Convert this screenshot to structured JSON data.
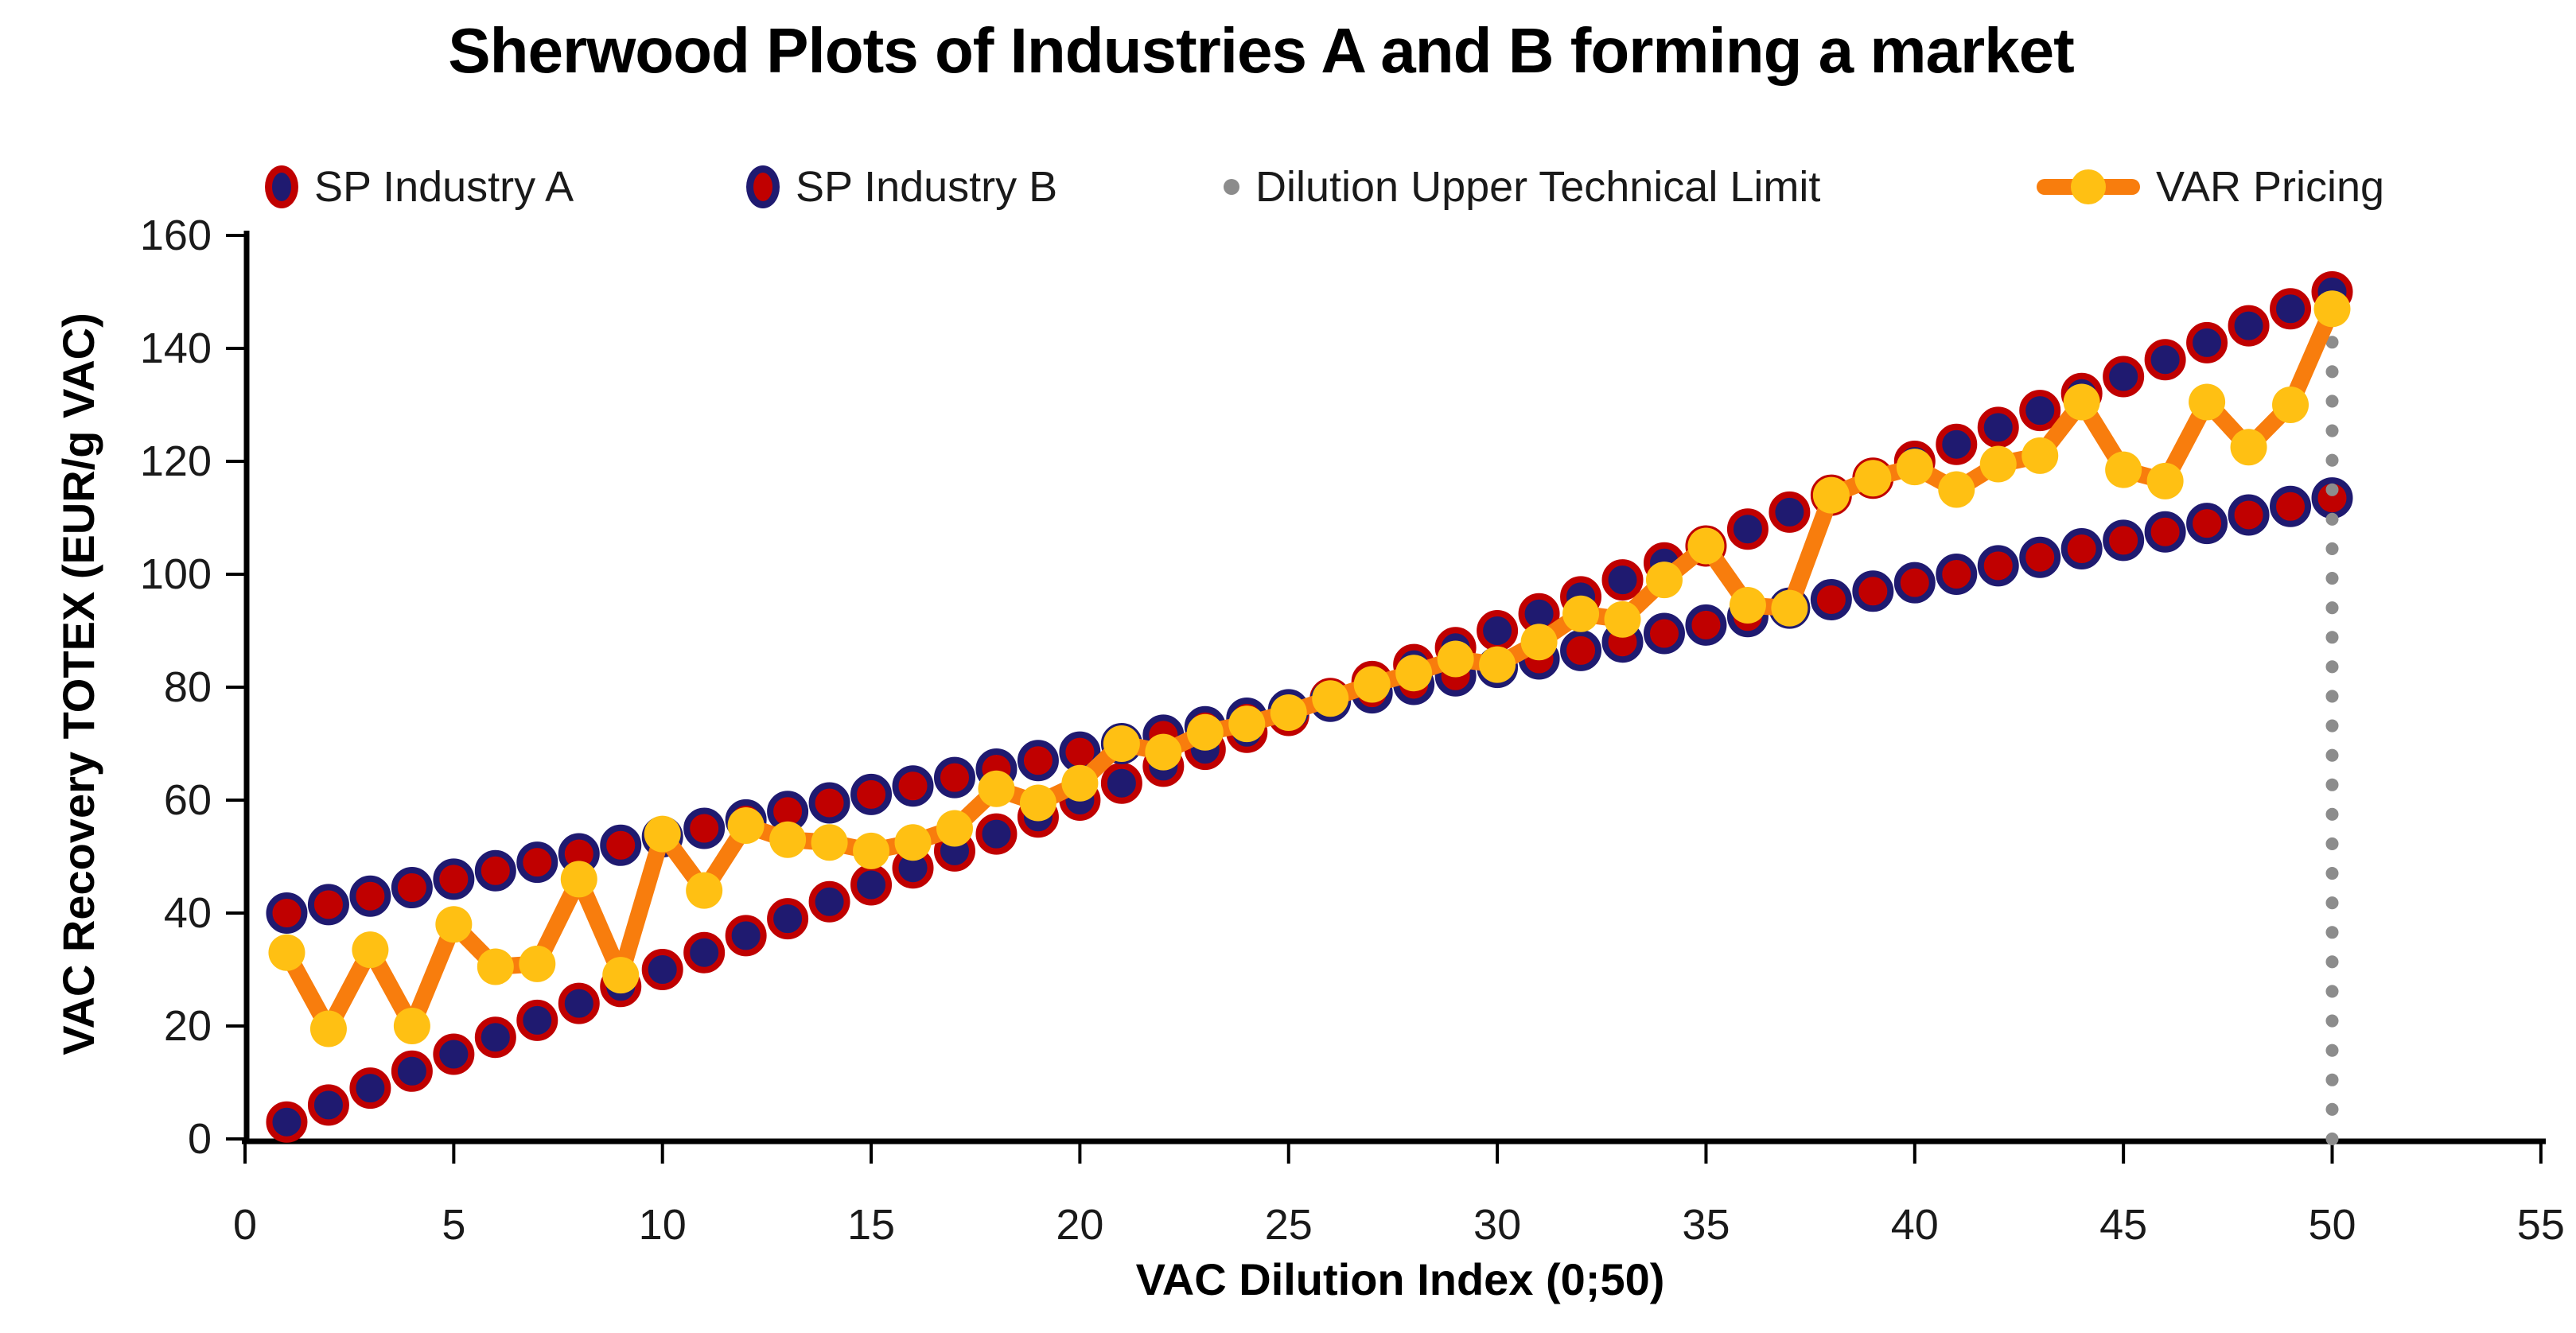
{
  "title": "Sherwood Plots of Industries A and B forming a market",
  "axes": {
    "x": {
      "label": "VAC Dilution Index (0;50)",
      "min": 0,
      "max": 55,
      "ticks": [
        0,
        5,
        10,
        15,
        20,
        25,
        30,
        35,
        40,
        45,
        50,
        55
      ]
    },
    "y": {
      "label": "VAC Recovery TOTEX (EUR/g VAC)",
      "min": 0,
      "max": 160,
      "ticks": [
        0,
        20,
        40,
        60,
        80,
        100,
        120,
        140,
        160
      ]
    }
  },
  "legend": [
    {
      "label": "SP Industry A",
      "marker": "ellipse-a"
    },
    {
      "label": "SP Industry B",
      "marker": "ellipse-b"
    },
    {
      "label": "Dilution Upper Technical Limit",
      "marker": "dot"
    },
    {
      "label": "VAR Pricing",
      "marker": "line"
    }
  ],
  "colors": {
    "industry_a_fill": "#1F1A70",
    "industry_a_ring": "#C00000",
    "industry_b_fill": "#C00000",
    "industry_b_ring": "#1F1A70",
    "var_line": "#F87D0D",
    "var_marker": "#FFC013",
    "dilution": "#8C8C8C",
    "axis": "#000000",
    "text": "#1a1a1a"
  },
  "chart_data": {
    "type": "line",
    "title": "Sherwood Plots of Industries A and B forming a market",
    "xlabel": "VAC Dilution Index (0;50)",
    "ylabel": "VAC Recovery TOTEX (EUR/g VAC)",
    "xlim": [
      0,
      55
    ],
    "ylim": [
      0,
      160
    ],
    "grid": false,
    "legend_position": "top",
    "x": [
      1,
      2,
      3,
      4,
      5,
      6,
      7,
      8,
      9,
      10,
      11,
      12,
      13,
      14,
      15,
      16,
      17,
      18,
      19,
      20,
      21,
      22,
      23,
      24,
      25,
      26,
      27,
      28,
      29,
      30,
      31,
      32,
      33,
      34,
      35,
      36,
      37,
      38,
      39,
      40,
      41,
      42,
      43,
      44,
      45,
      46,
      47,
      48,
      49,
      50
    ],
    "series": [
      {
        "name": "SP Industry A",
        "style": "scatter",
        "values": [
          3,
          6,
          9,
          12,
          15,
          18,
          21,
          24,
          27,
          30,
          33,
          36,
          39,
          42,
          45,
          48,
          51,
          54,
          57,
          60,
          63,
          66,
          69,
          72,
          75,
          78,
          81,
          84,
          87,
          90,
          93,
          96,
          99,
          102,
          105,
          108,
          111,
          114,
          117,
          120,
          123,
          126,
          129,
          132,
          135,
          138,
          141,
          144,
          147,
          150
        ]
      },
      {
        "name": "SP Industry B",
        "style": "scatter",
        "values": [
          40,
          41.5,
          43,
          44.5,
          46,
          47.5,
          49,
          50.5,
          52,
          53.5,
          55,
          56.5,
          58,
          59.5,
          61,
          62.5,
          64,
          65.5,
          67,
          68.5,
          70,
          71.5,
          73,
          74.5,
          76,
          77.5,
          79,
          80.5,
          82,
          83.5,
          85,
          86.5,
          88,
          89.5,
          91,
          92.5,
          94,
          95.5,
          97,
          98.5,
          100,
          101.5,
          103,
          104.5,
          106,
          107.5,
          109,
          110.5,
          112,
          113.5
        ]
      },
      {
        "name": "VAR Pricing",
        "style": "line-marker",
        "values": [
          33,
          19.5,
          33.5,
          20,
          38,
          30.5,
          31,
          46,
          29,
          54,
          44,
          55.5,
          53,
          52.5,
          51,
          52.5,
          55,
          62,
          59.5,
          63,
          70,
          68.5,
          72,
          73.5,
          75.5,
          78,
          80.5,
          82.5,
          85,
          84,
          88,
          93,
          92,
          99,
          105,
          94.5,
          94,
          114,
          117,
          119,
          115,
          119.5,
          121,
          130.5,
          118.5,
          116.5,
          130.5,
          122.5,
          130,
          147
        ]
      },
      {
        "name": "Dilution Upper Technical Limit",
        "style": "vertical-dotted",
        "x": 50,
        "y_from": 0,
        "y_to": 150
      }
    ]
  }
}
